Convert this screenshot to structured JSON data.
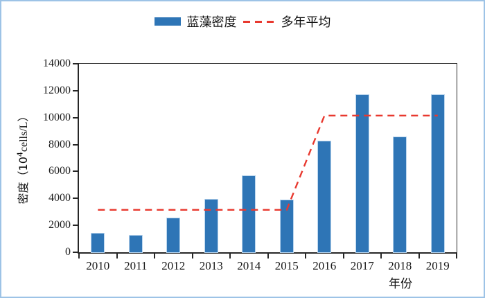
{
  "legend": {
    "bars_label": "蓝藻密度",
    "line_label": "多年平均"
  },
  "axis": {
    "y_label_prefix": "密度（10",
    "y_label_sup": "4",
    "y_label_suffix": "cells/L）",
    "x_label": "年份"
  },
  "colors": {
    "bar": "#2E75B6",
    "bar_edge": "#BBD6EE",
    "line": "#E8392F",
    "frame_border": "#9DC3E6",
    "axis": "#262626",
    "tick_text": "#1a1a1a"
  },
  "chart_data": {
    "type": "bar",
    "categories": [
      "2010",
      "2011",
      "2012",
      "2013",
      "2014",
      "2015",
      "2016",
      "2017",
      "2018",
      "2019"
    ],
    "series": [
      {
        "name": "蓝藻密度",
        "type": "bar",
        "values": [
          1400,
          1250,
          2500,
          3900,
          5650,
          3870,
          8250,
          11700,
          8550,
          11700
        ]
      },
      {
        "name": "多年平均",
        "type": "line",
        "style": "dashed",
        "values": [
          3150,
          3150,
          3150,
          3150,
          3150,
          3150,
          10150,
          10150,
          10150,
          10150
        ]
      }
    ],
    "title": "",
    "xlabel": "年份",
    "ylabel": "密度（10⁴cells/L）",
    "ylim": [
      0,
      14000
    ],
    "ytick_step": 2000,
    "grid": false,
    "legend_position": "top-center"
  }
}
